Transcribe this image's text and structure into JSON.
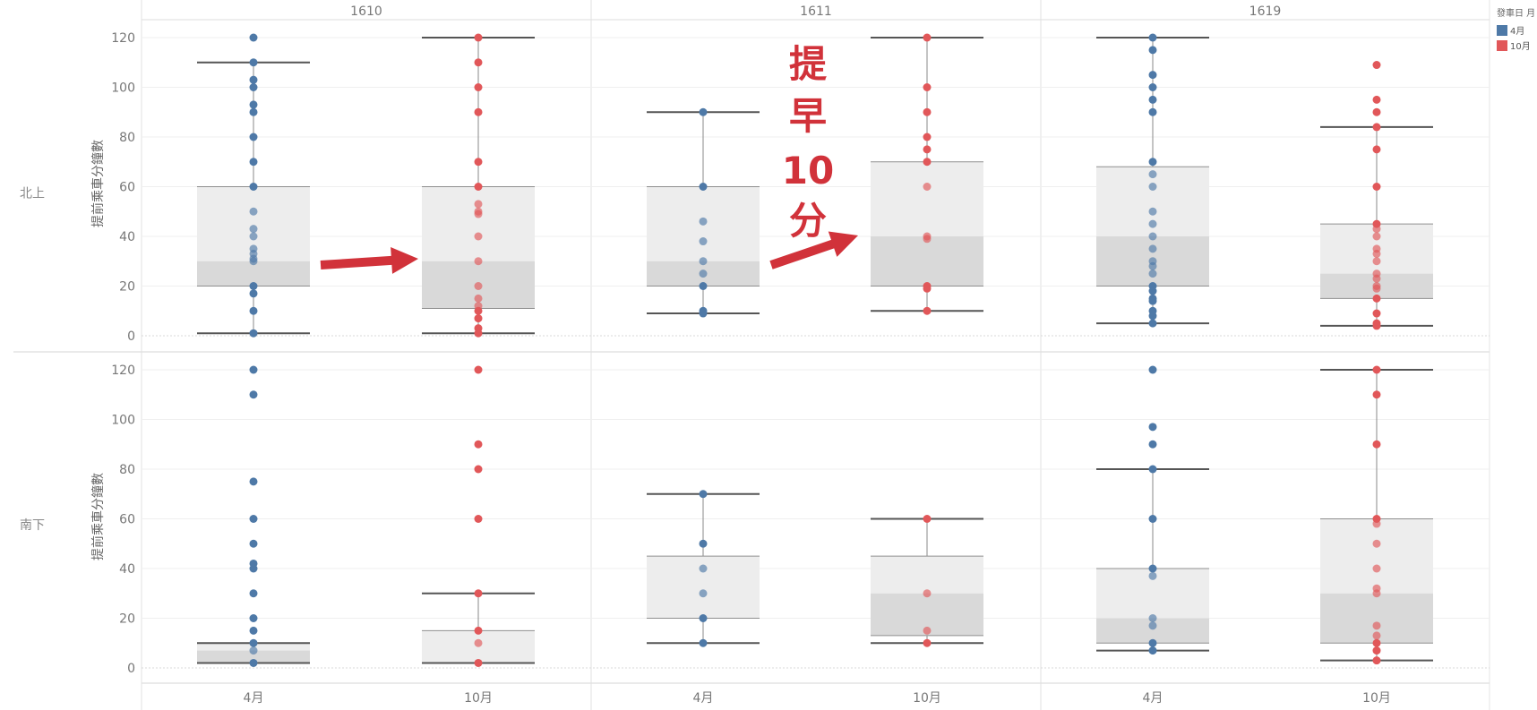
{
  "chart_data": {
    "type": "box",
    "columns": [
      "1610",
      "1611",
      "1619"
    ],
    "rows": [
      "北上",
      "南下"
    ],
    "categories": [
      "4月",
      "10月"
    ],
    "ylabel": "提前乘車分鐘數",
    "yticks": [
      0,
      20,
      40,
      60,
      80,
      100,
      120
    ],
    "ylim": [
      0,
      120
    ],
    "grid": true,
    "legend": {
      "title": "發車日 月",
      "position": "top-right",
      "items": [
        {
          "label": "4月",
          "color": "#4e79a7"
        },
        {
          "label": "10月",
          "color": "#e15759"
        }
      ]
    },
    "annotation": {
      "text_lines": [
        "提",
        "早",
        "10",
        "分"
      ],
      "color": "#d1323a"
    },
    "colors": {
      "4月": "#4e79a7",
      "10月": "#e15759"
    },
    "panels": [
      {
        "column": "1610",
        "row": "北上",
        "category": "4月",
        "whisker_low": 1,
        "q1": 20,
        "median": 30,
        "q3": 60,
        "whisker_high": 110,
        "points": [
          120,
          110,
          103,
          100,
          93,
          90,
          80,
          70,
          60,
          50,
          43,
          40,
          35,
          33,
          31,
          30,
          20,
          17,
          10,
          1
        ]
      },
      {
        "column": "1610",
        "row": "北上",
        "category": "10月",
        "whisker_low": 1,
        "q1": 11,
        "median": 30,
        "q3": 60,
        "whisker_high": 120,
        "points": [
          120,
          110,
          100,
          90,
          70,
          60,
          53,
          50,
          49,
          40,
          30,
          20,
          15,
          12,
          10,
          7,
          3,
          1
        ]
      },
      {
        "column": "1611",
        "row": "北上",
        "category": "4月",
        "whisker_low": 9,
        "q1": 20,
        "median": 30,
        "q3": 60,
        "whisker_high": 90,
        "points": [
          90,
          60,
          46,
          38,
          30,
          25,
          20,
          10,
          9
        ]
      },
      {
        "column": "1611",
        "row": "北上",
        "category": "10月",
        "whisker_low": 10,
        "q1": 20,
        "median": 40,
        "q3": 70,
        "whisker_high": 120,
        "points": [
          120,
          100,
          90,
          80,
          75,
          70,
          60,
          40,
          39,
          20,
          19,
          10
        ]
      },
      {
        "column": "1619",
        "row": "北上",
        "category": "4月",
        "whisker_low": 5,
        "q1": 20,
        "median": 40,
        "q3": 68,
        "whisker_high": 120,
        "points": [
          120,
          115,
          105,
          100,
          95,
          90,
          70,
          65,
          60,
          50,
          45,
          40,
          35,
          30,
          28,
          25,
          20,
          18,
          15,
          14,
          10,
          8,
          5
        ]
      },
      {
        "column": "1619",
        "row": "北上",
        "category": "10月",
        "whisker_low": 4,
        "q1": 15,
        "median": 25,
        "q3": 45,
        "whisker_high": 84,
        "points": [
          109,
          95,
          90,
          84,
          75,
          60,
          45,
          43,
          40,
          35,
          33,
          30,
          25,
          23,
          20,
          19,
          15,
          9,
          5,
          4
        ]
      },
      {
        "column": "1610",
        "row": "南下",
        "category": "4月",
        "whisker_low": 2,
        "q1": 2,
        "median": 7,
        "q3": 10,
        "whisker_high": 10,
        "points": [
          120,
          110,
          75,
          60,
          50,
          42,
          40,
          30,
          20,
          15,
          10,
          7,
          2
        ]
      },
      {
        "column": "1610",
        "row": "南下",
        "category": "10月",
        "whisker_low": 2,
        "q1": 2,
        "median": 2,
        "q3": 15,
        "whisker_high": 30,
        "points": [
          120,
          90,
          80,
          60,
          30,
          15,
          10,
          2
        ]
      },
      {
        "column": "1611",
        "row": "南下",
        "category": "4月",
        "whisker_low": 10,
        "q1": 20,
        "median": 20,
        "q3": 45,
        "whisker_high": 70,
        "points": [
          70,
          50,
          40,
          30,
          20,
          10
        ]
      },
      {
        "column": "1611",
        "row": "南下",
        "category": "10月",
        "whisker_low": 10,
        "q1": 13,
        "median": 30,
        "q3": 45,
        "whisker_high": 60,
        "points": [
          60,
          30,
          15,
          10
        ]
      },
      {
        "column": "1619",
        "row": "南下",
        "category": "4月",
        "whisker_low": 7,
        "q1": 10,
        "median": 20,
        "q3": 40,
        "whisker_high": 80,
        "points": [
          120,
          97,
          90,
          80,
          60,
          40,
          37,
          20,
          17,
          10,
          7
        ]
      },
      {
        "column": "1619",
        "row": "南下",
        "category": "10月",
        "whisker_low": 3,
        "q1": 10,
        "median": 30,
        "q3": 60,
        "whisker_high": 120,
        "points": [
          120,
          110,
          90,
          60,
          58,
          50,
          40,
          32,
          30,
          17,
          13,
          10,
          7,
          3
        ]
      }
    ]
  }
}
